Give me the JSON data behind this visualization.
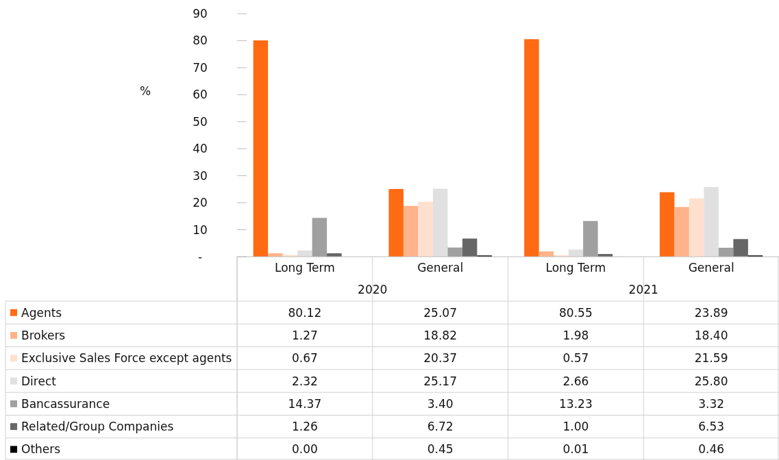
{
  "chart_data": {
    "type": "bar",
    "ylabel": "%",
    "categories": [
      "Long Term",
      "General",
      "Long Term",
      "General"
    ],
    "annotations": [
      "2020",
      "2021"
    ],
    "ylim": [
      0,
      90
    ],
    "yticks": [
      {
        "value": 0,
        "label": "-"
      },
      10,
      20,
      30,
      40,
      50,
      60,
      70,
      80,
      90
    ],
    "grid": false,
    "legend": "bottom",
    "series": [
      {
        "name": "Agents",
        "color": "#ff6a13",
        "values": [
          80.12,
          25.07,
          80.55,
          23.89
        ],
        "value_labels": [
          "80.12",
          "25.07",
          "80.55",
          "23.89"
        ]
      },
      {
        "name": "Brokers",
        "color": "#ffb38a",
        "values": [
          1.27,
          18.82,
          1.98,
          18.4
        ],
        "value_labels": [
          "1.27",
          "18.82",
          "1.98",
          "18.40"
        ]
      },
      {
        "name": "Exclusive Sales Force except agents",
        "color": "#ffe0cf",
        "values": [
          0.67,
          20.37,
          0.57,
          21.59
        ],
        "value_labels": [
          "0.67",
          "20.37",
          "0.57",
          "21.59"
        ]
      },
      {
        "name": "Direct",
        "color": "#e0e0e0",
        "values": [
          2.32,
          25.17,
          2.66,
          25.8
        ],
        "value_labels": [
          "2.32",
          "25.17",
          "2.66",
          "25.80"
        ]
      },
      {
        "name": "Bancassurance",
        "color": "#a0a0a0",
        "values": [
          14.37,
          3.4,
          13.23,
          3.32
        ],
        "value_labels": [
          "14.37",
          "3.40",
          "13.23",
          "3.32"
        ]
      },
      {
        "name": "Related/Group Companies",
        "color": "#666666",
        "values": [
          1.26,
          6.72,
          1.0,
          6.53
        ],
        "value_labels": [
          "1.26",
          "6.72",
          "1.00",
          "6.53"
        ]
      },
      {
        "name": "Others",
        "color": "#000000",
        "values": [
          0.0,
          0.45,
          0.01,
          0.46
        ],
        "value_labels": [
          "0.00",
          "0.45",
          "0.01",
          "0.46"
        ]
      }
    ]
  }
}
